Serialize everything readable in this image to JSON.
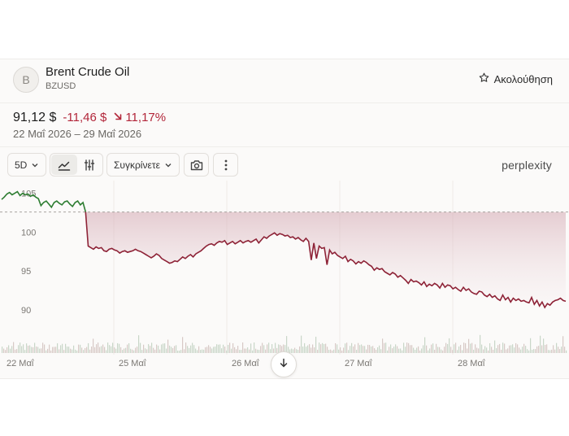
{
  "asset": {
    "initial": "B",
    "name": "Brent Crude Oil",
    "ticker": "BZUSD"
  },
  "follow": {
    "label": "Ακολούθηση",
    "icon": "star-icon"
  },
  "quote": {
    "price": "91,12 $",
    "change": "-11,46 $",
    "percent": "11,17%",
    "range": "22 Μαΐ 2026 – 29 Μαΐ 2026"
  },
  "toolbar": {
    "period": "5D",
    "compare": "Συγκρίνετε",
    "icons": [
      "chevron-down-icon",
      "line-chart-icon",
      "sliders-icon",
      "camera-icon",
      "more-vertical-icon"
    ]
  },
  "brand": "perplexity",
  "colors": {
    "up": "#2e7d32",
    "down": "#8e2337",
    "accent_red": "#b2263a"
  },
  "chart_data": {
    "type": "line",
    "y_ticks": [
      "105",
      "100",
      "95",
      "90"
    ],
    "ylim": [
      88,
      106
    ],
    "reference_value": 102.58,
    "x_labels": [
      "22 Μαΐ",
      "25 Μαΐ",
      "26 Μαΐ",
      "27 Μαΐ",
      "28 Μαΐ"
    ],
    "series": [
      {
        "values": [
          104.2,
          104.5,
          104.9,
          105.1,
          104.8,
          105.0,
          105.2,
          104.7,
          105.0,
          104.8,
          104.9,
          104.6,
          104.8,
          104.5,
          104.3,
          103.4,
          103.8,
          104.0,
          103.6,
          103.2,
          103.8,
          104.0,
          103.7,
          103.5,
          103.9,
          104.0,
          103.6,
          103.3,
          103.8,
          104.0,
          103.5,
          103.8,
          102.6
        ]
      },
      {
        "values": [
          102.6,
          98.2,
          98.0,
          97.8,
          98.1,
          97.9,
          98.0,
          97.6,
          97.5,
          97.8,
          97.9,
          97.7,
          97.6,
          97.3,
          97.5,
          97.6,
          97.4,
          97.5,
          97.6,
          97.8,
          97.6,
          97.5,
          97.3,
          97.1,
          96.9,
          96.7,
          96.9,
          97.2,
          97.0,
          96.6,
          96.4,
          96.2,
          96.0,
          96.1,
          96.3,
          96.2,
          96.5,
          96.8,
          96.6,
          96.9,
          97.1,
          96.8,
          97.2,
          97.4,
          97.6,
          97.9,
          98.2,
          98.4,
          98.5,
          98.3,
          98.6,
          98.8,
          98.7,
          98.9,
          98.4,
          98.6,
          98.8,
          98.5,
          98.7,
          98.9,
          98.6,
          98.8,
          98.9,
          98.7,
          98.9,
          99.1,
          98.6,
          99.0,
          99.4,
          99.2,
          99.5,
          99.7,
          99.9,
          99.6,
          99.8,
          99.7,
          99.5,
          99.6,
          99.3,
          99.4,
          99.1,
          99.3,
          99.0,
          98.8,
          99.2,
          98.8,
          96.4,
          98.6,
          96.6,
          98.2,
          97.9,
          98.0,
          95.8,
          97.7,
          97.2,
          97.4,
          97.0,
          96.8,
          96.6,
          96.9,
          96.2,
          96.5,
          96.3,
          95.9,
          96.2,
          96.0,
          96.3,
          96.1,
          95.8,
          95.6,
          95.1,
          95.4,
          95.2,
          95.3,
          94.9,
          94.7,
          94.5,
          94.8,
          94.6,
          94.2,
          94.4,
          94.1,
          93.8,
          93.4,
          93.9,
          93.6,
          93.7,
          93.5,
          93.2,
          93.6,
          93.0,
          93.3,
          93.1,
          93.4,
          93.2,
          92.8,
          93.4,
          92.9,
          93.2,
          93.1,
          92.7,
          92.9,
          92.6,
          92.4,
          92.9,
          92.5,
          92.7,
          92.3,
          92.1,
          92.0,
          92.4,
          92.3,
          91.9,
          91.7,
          92.0,
          91.6,
          91.8,
          91.4,
          91.2,
          91.9,
          91.3,
          91.6,
          91.0,
          91.5,
          91.2,
          91.4,
          91.1,
          91.2,
          91.0,
          90.9,
          91.6,
          90.7,
          91.2,
          90.5,
          91.0,
          90.3,
          90.8,
          90.6,
          91.0,
          91.2,
          91.3,
          91.5,
          91.2,
          91.1
        ]
      }
    ]
  }
}
